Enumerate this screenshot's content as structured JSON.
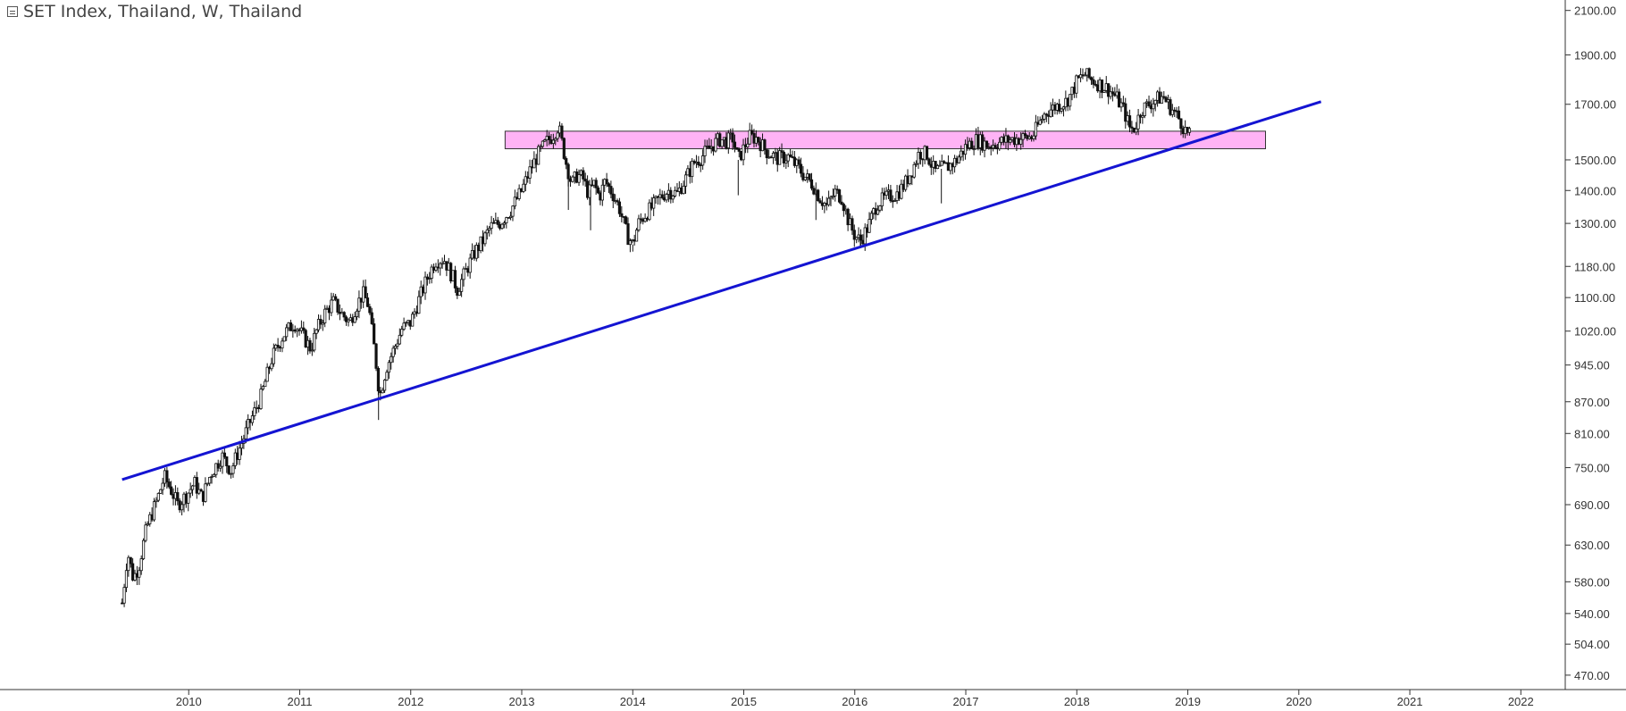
{
  "title": "SET Index, Thailand, W, Thailand",
  "colors": {
    "trendline": "#1414d2",
    "zone_fill": "#ffb3f5",
    "zone_stroke": "#333333",
    "candle": "#111111",
    "axis": "#333333",
    "grid": "none"
  },
  "icons": {
    "collapse": "collapse-icon"
  },
  "chart_data": {
    "type": "candlestick",
    "title": "SET Index, Thailand, W, Thailand",
    "y_scale": "log",
    "ylim": [
      455,
      2150
    ],
    "xlim": [
      2008.3,
      2022.4
    ],
    "grid": false,
    "x_ticks": [
      "2010",
      "2011",
      "2012",
      "2013",
      "2014",
      "2015",
      "2016",
      "2017",
      "2018",
      "2019",
      "2020",
      "2021",
      "2022"
    ],
    "y_ticks": [
      "2100.00",
      "1900.00",
      "1700.00",
      "1500.00",
      "1400.00",
      "1300.00",
      "1180.00",
      "1100.00",
      "1020.00",
      "945.00",
      "870.00",
      "810.00",
      "750.00",
      "690.00",
      "630.00",
      "580.00",
      "540.00",
      "504.00",
      "470.00"
    ],
    "price_path": [
      [
        2009.4,
        553
      ],
      [
        2009.45,
        620
      ],
      [
        2009.5,
        585
      ],
      [
        2009.55,
        600
      ],
      [
        2009.62,
        655
      ],
      [
        2009.72,
        700
      ],
      [
        2009.78,
        735
      ],
      [
        2009.85,
        710
      ],
      [
        2009.9,
        690
      ],
      [
        2009.98,
        705
      ],
      [
        2010.05,
        725
      ],
      [
        2010.12,
        700
      ],
      [
        2010.2,
        740
      ],
      [
        2010.3,
        770
      ],
      [
        2010.38,
        745
      ],
      [
        2010.45,
        780
      ],
      [
        2010.55,
        830
      ],
      [
        2010.65,
        880
      ],
      [
        2010.75,
        960
      ],
      [
        2010.85,
        1010
      ],
      [
        2010.95,
        1040
      ],
      [
        2011.05,
        1000
      ],
      [
        2011.1,
        980
      ],
      [
        2011.15,
        1020
      ],
      [
        2011.22,
        1060
      ],
      [
        2011.3,
        1090
      ],
      [
        2011.38,
        1060
      ],
      [
        2011.45,
        1040
      ],
      [
        2011.5,
        1075
      ],
      [
        2011.57,
        1110
      ],
      [
        2011.62,
        1080
      ],
      [
        2011.68,
        965
      ],
      [
        2011.72,
        880
      ],
      [
        2011.78,
        940
      ],
      [
        2011.85,
        980
      ],
      [
        2011.92,
        1025
      ],
      [
        2012.0,
        1040
      ],
      [
        2012.08,
        1100
      ],
      [
        2012.15,
        1150
      ],
      [
        2012.22,
        1195
      ],
      [
        2012.3,
        1200
      ],
      [
        2012.38,
        1150
      ],
      [
        2012.42,
        1120
      ],
      [
        2012.5,
        1170
      ],
      [
        2012.58,
        1220
      ],
      [
        2012.65,
        1250
      ],
      [
        2012.72,
        1290
      ],
      [
        2012.8,
        1300
      ],
      [
        2012.9,
        1340
      ],
      [
        2013.0,
        1400
      ],
      [
        2013.08,
        1470
      ],
      [
        2013.15,
        1520
      ],
      [
        2013.22,
        1560
      ],
      [
        2013.28,
        1585
      ],
      [
        2013.33,
        1620
      ],
      [
        2013.4,
        1490
      ],
      [
        2013.45,
        1420
      ],
      [
        2013.5,
        1450
      ],
      [
        2013.55,
        1440
      ],
      [
        2013.6,
        1390
      ],
      [
        2013.65,
        1420
      ],
      [
        2013.7,
        1380
      ],
      [
        2013.75,
        1430
      ],
      [
        2013.82,
        1390
      ],
      [
        2013.88,
        1345
      ],
      [
        2013.95,
        1265
      ],
      [
        2014.0,
        1240
      ],
      [
        2014.05,
        1300
      ],
      [
        2014.12,
        1330
      ],
      [
        2014.18,
        1350
      ],
      [
        2014.25,
        1380
      ],
      [
        2014.32,
        1400
      ],
      [
        2014.4,
        1390
      ],
      [
        2014.48,
        1440
      ],
      [
        2014.55,
        1490
      ],
      [
        2014.62,
        1510
      ],
      [
        2014.7,
        1545
      ],
      [
        2014.78,
        1570
      ],
      [
        2014.85,
        1565
      ],
      [
        2014.9,
        1575
      ],
      [
        2014.95,
        1500
      ],
      [
        2015.0,
        1540
      ],
      [
        2015.05,
        1580
      ],
      [
        2015.12,
        1575
      ],
      [
        2015.2,
        1530
      ],
      [
        2015.3,
        1505
      ],
      [
        2015.4,
        1510
      ],
      [
        2015.5,
        1470
      ],
      [
        2015.55,
        1445
      ],
      [
        2015.62,
        1420
      ],
      [
        2015.68,
        1380
      ],
      [
        2015.75,
        1350
      ],
      [
        2015.82,
        1395
      ],
      [
        2015.88,
        1380
      ],
      [
        2015.95,
        1300
      ],
      [
        2016.0,
        1265
      ],
      [
        2016.05,
        1250
      ],
      [
        2016.12,
        1290
      ],
      [
        2016.2,
        1360
      ],
      [
        2016.3,
        1380
      ],
      [
        2016.38,
        1390
      ],
      [
        2016.45,
        1420
      ],
      [
        2016.52,
        1470
      ],
      [
        2016.58,
        1525
      ],
      [
        2016.65,
        1520
      ],
      [
        2016.72,
        1460
      ],
      [
        2016.78,
        1470
      ],
      [
        2016.85,
        1480
      ],
      [
        2016.92,
        1500
      ],
      [
        2017.0,
        1545
      ],
      [
        2017.1,
        1570
      ],
      [
        2017.2,
        1550
      ],
      [
        2017.3,
        1560
      ],
      [
        2017.4,
        1570
      ],
      [
        2017.5,
        1575
      ],
      [
        2017.6,
        1580
      ],
      [
        2017.65,
        1620
      ],
      [
        2017.72,
        1670
      ],
      [
        2017.8,
        1690
      ],
      [
        2017.9,
        1710
      ],
      [
        2017.95,
        1740
      ],
      [
        2018.0,
        1790
      ],
      [
        2018.07,
        1820
      ],
      [
        2018.12,
        1800
      ],
      [
        2018.2,
        1780
      ],
      [
        2018.28,
        1760
      ],
      [
        2018.35,
        1730
      ],
      [
        2018.42,
        1680
      ],
      [
        2018.48,
        1610
      ],
      [
        2018.52,
        1610
      ],
      [
        2018.58,
        1680
      ],
      [
        2018.65,
        1700
      ],
      [
        2018.72,
        1720
      ],
      [
        2018.78,
        1730
      ],
      [
        2018.82,
        1700
      ],
      [
        2018.88,
        1670
      ],
      [
        2018.93,
        1640
      ],
      [
        2018.98,
        1600
      ],
      [
        2019.02,
        1580
      ]
    ],
    "wick_spikes": [
      {
        "x": 2011.71,
        "low": 835
      },
      {
        "x": 2013.42,
        "low": 1340
      },
      {
        "x": 2013.62,
        "low": 1280
      },
      {
        "x": 2014.0,
        "low": 1220
      },
      {
        "x": 2014.95,
        "low": 1385
      },
      {
        "x": 2015.65,
        "low": 1310
      },
      {
        "x": 2016.05,
        "low": 1230
      },
      {
        "x": 2016.78,
        "low": 1360
      }
    ],
    "annotations": [
      {
        "type": "trendline",
        "from": [
          2009.4,
          730
        ],
        "to": [
          2020.2,
          1710
        ]
      },
      {
        "type": "zone",
        "x": [
          2012.85,
          2019.7
        ],
        "y": [
          1538,
          1600
        ]
      }
    ]
  }
}
